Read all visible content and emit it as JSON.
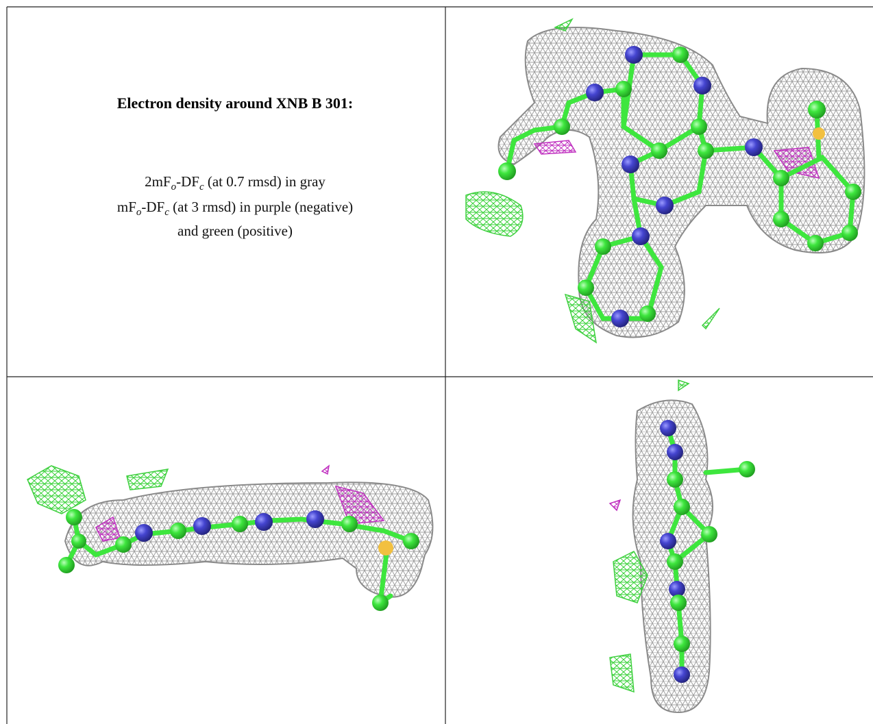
{
  "caption": {
    "title": "Electron density around XNB B 301:",
    "lines": [
      [
        "2mF",
        "o",
        "-DF",
        "c",
        " (at 0.7 rmsd) in gray"
      ],
      [
        "mF",
        "o",
        "-DF",
        "c",
        " (at 3 rmsd) in purple (negative)"
      ],
      [
        "and green (positive)"
      ]
    ]
  }
}
